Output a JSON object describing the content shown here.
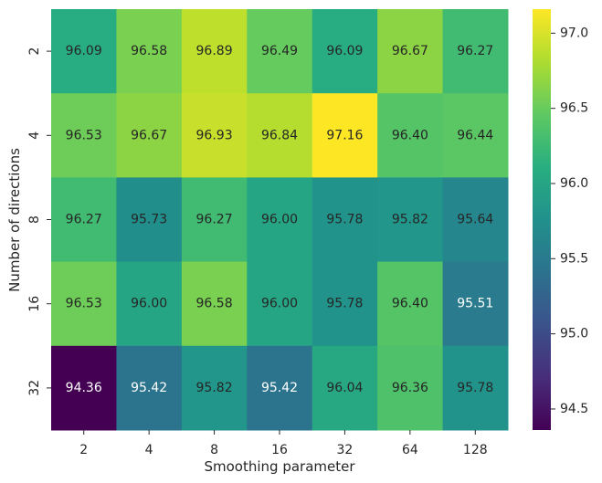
{
  "chart_data": {
    "type": "heatmap",
    "xlabel": "Smoothing parameter",
    "ylabel": "Number of directions",
    "x_categories": [
      "2",
      "4",
      "8",
      "16",
      "32",
      "64",
      "128"
    ],
    "y_categories": [
      "2",
      "4",
      "8",
      "16",
      "32"
    ],
    "values": [
      [
        96.09,
        96.58,
        96.89,
        96.49,
        96.09,
        96.67,
        96.27
      ],
      [
        96.53,
        96.67,
        96.93,
        96.84,
        97.16,
        96.4,
        96.44
      ],
      [
        96.27,
        95.73,
        96.27,
        96.0,
        95.78,
        95.82,
        95.64
      ],
      [
        96.53,
        96.0,
        96.58,
        96.0,
        95.78,
        96.4,
        95.51
      ],
      [
        94.36,
        95.42,
        95.82,
        95.42,
        96.04,
        96.36,
        95.78
      ]
    ],
    "value_labels": [
      [
        "96.09",
        "96.58",
        "96.89",
        "96.49",
        "96.09",
        "96.67",
        "96.27"
      ],
      [
        "96.53",
        "96.67",
        "96.93",
        "96.84",
        "97.16",
        "96.40",
        "96.44"
      ],
      [
        "96.27",
        "95.73",
        "96.27",
        "96.00",
        "95.78",
        "95.82",
        "95.64"
      ],
      [
        "96.53",
        "96.00",
        "96.58",
        "96.00",
        "95.78",
        "96.40",
        "95.51"
      ],
      [
        "94.36",
        "95.42",
        "95.82",
        "95.42",
        "96.04",
        "96.36",
        "95.78"
      ]
    ],
    "colormap": "viridis",
    "vmin": 94.36,
    "vmax": 97.16,
    "colorbar_ticks": [
      94.5,
      95.0,
      95.5,
      96.0,
      96.5,
      97.0
    ],
    "colorbar_tick_labels": [
      "94.5",
      "95.0",
      "95.5",
      "96.0",
      "96.5",
      "97.0"
    ],
    "label_color_dark": "#262626",
    "label_color_light": "#ffffff",
    "grid": false
  }
}
